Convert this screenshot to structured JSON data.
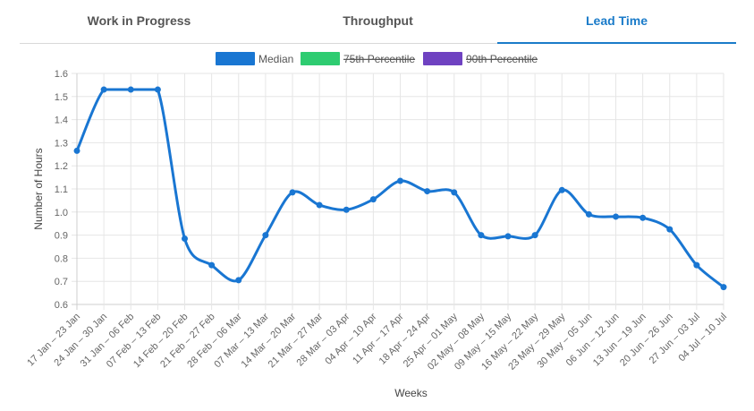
{
  "tabs": [
    {
      "label": "Work in Progress",
      "active": false
    },
    {
      "label": "Throughput",
      "active": false
    },
    {
      "label": "Lead Time",
      "active": true
    }
  ],
  "colors": {
    "accent": "#1a7bc9",
    "median": "#1976d2",
    "p75": "#2ecc71",
    "p90": "#6f42c1",
    "grid": "#e6e6e6"
  },
  "chart_data": {
    "type": "line",
    "ylabel": "Number of Hours",
    "xlabel": "Weeks",
    "ylim": [
      0.6,
      1.6
    ],
    "yticks": [
      "0.6",
      "0.7",
      "0.8",
      "0.9",
      "1.0",
      "1.1",
      "1.2",
      "1.3",
      "1.4",
      "1.5",
      "1.6"
    ],
    "grid": true,
    "legend_position": "top",
    "legend": [
      {
        "name": "Median",
        "color": "#1976d2",
        "hidden": false
      },
      {
        "name": "75th Percentile",
        "color": "#2ecc71",
        "hidden": true
      },
      {
        "name": "90th Percentile",
        "color": "#6f42c1",
        "hidden": true
      }
    ],
    "categories": [
      "17 Jan – 23 Jan",
      "24 Jan – 30 Jan",
      "31 Jan – 06 Feb",
      "07 Feb – 13 Feb",
      "14 Feb – 20 Feb",
      "21 Feb – 27 Feb",
      "28 Feb – 06 Mar",
      "07 Mar – 13 Mar",
      "14 Mar – 20 Mar",
      "21 Mar – 27 Mar",
      "28 Mar – 03 Apr",
      "04 Apr – 10 Apr",
      "11 Apr – 17 Apr",
      "18 Apr – 24 Apr",
      "25 Apr – 01 May",
      "02 May – 08 May",
      "09 May – 15 May",
      "16 May – 22 May",
      "23 May – 29 May",
      "30 May – 05 Jun",
      "06 Jun – 12 Jun",
      "13 Jun – 19 Jun",
      "20 Jun – 26 Jun",
      "27 Jun – 03 Jul",
      "04 Jul – 10 Jul"
    ],
    "series": [
      {
        "name": "Median",
        "values": [
          1.265,
          1.53,
          1.53,
          1.53,
          0.885,
          0.77,
          0.705,
          0.9,
          1.085,
          1.03,
          1.01,
          1.055,
          1.135,
          1.09,
          1.085,
          0.9,
          0.895,
          0.9,
          1.095,
          0.99,
          0.98,
          0.975,
          0.925,
          0.77,
          0.675
        ]
      }
    ]
  }
}
